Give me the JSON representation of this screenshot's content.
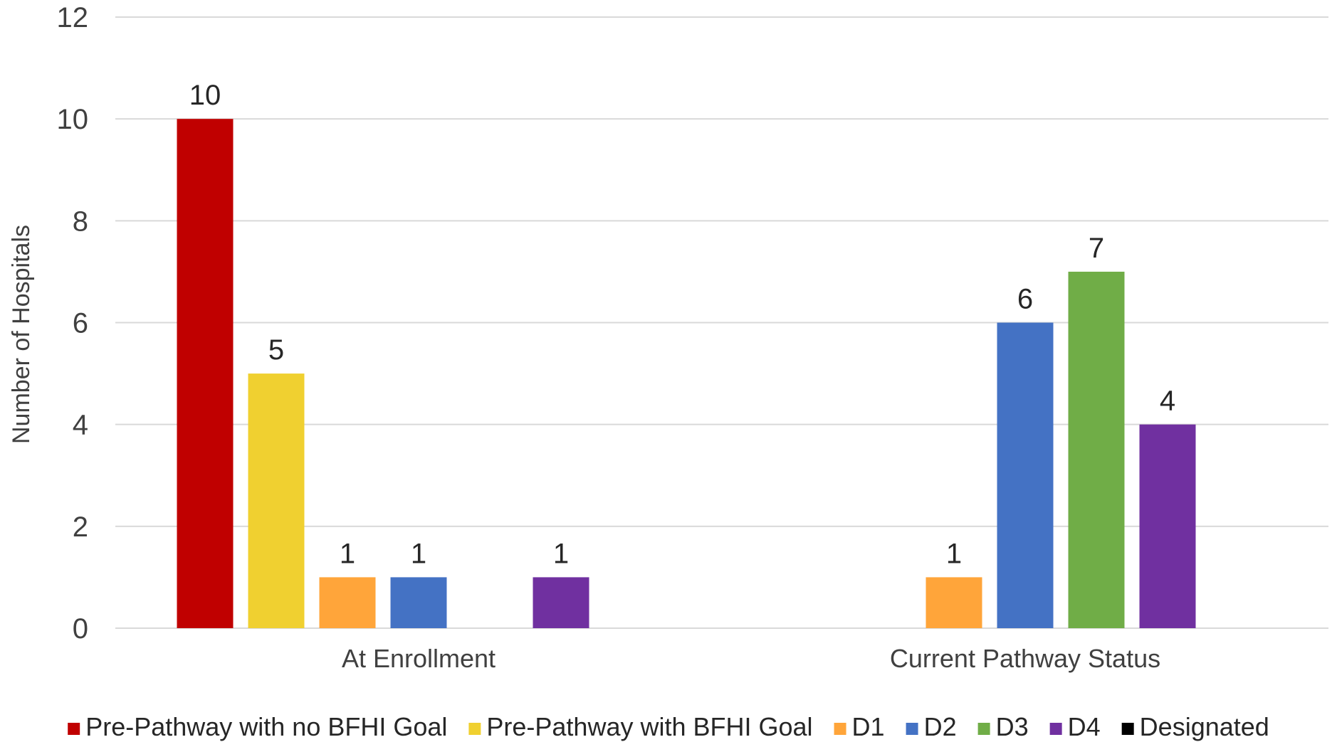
{
  "chart_data": {
    "type": "bar",
    "title": "",
    "xlabel": "",
    "ylabel": "Number of Hospitals",
    "ylim": [
      0,
      12
    ],
    "yticks": [
      "0",
      "2",
      "4",
      "6",
      "8",
      "10",
      "12"
    ],
    "grid": true,
    "legend_position": "bottom",
    "categories": [
      "At Enrollment",
      "Current Pathway Status"
    ],
    "series": [
      {
        "name": "Pre-Pathway with no BFHI Goal",
        "color": "#c00000",
        "values": [
          10,
          null
        ]
      },
      {
        "name": "Pre-Pathway with BFHI Goal",
        "color": "#f0d030",
        "values": [
          5,
          null
        ]
      },
      {
        "name": "D1",
        "color": "#ffa53a",
        "values": [
          1,
          1
        ]
      },
      {
        "name": "D2",
        "color": "#4472c4",
        "values": [
          1,
          6
        ]
      },
      {
        "name": "D3",
        "color": "#70ad47",
        "values": [
          null,
          7
        ]
      },
      {
        "name": "D4",
        "color": "#7030a0",
        "values": [
          1,
          4
        ]
      },
      {
        "name": "Designated",
        "color": "#000000",
        "values": [
          null,
          null
        ]
      }
    ]
  }
}
